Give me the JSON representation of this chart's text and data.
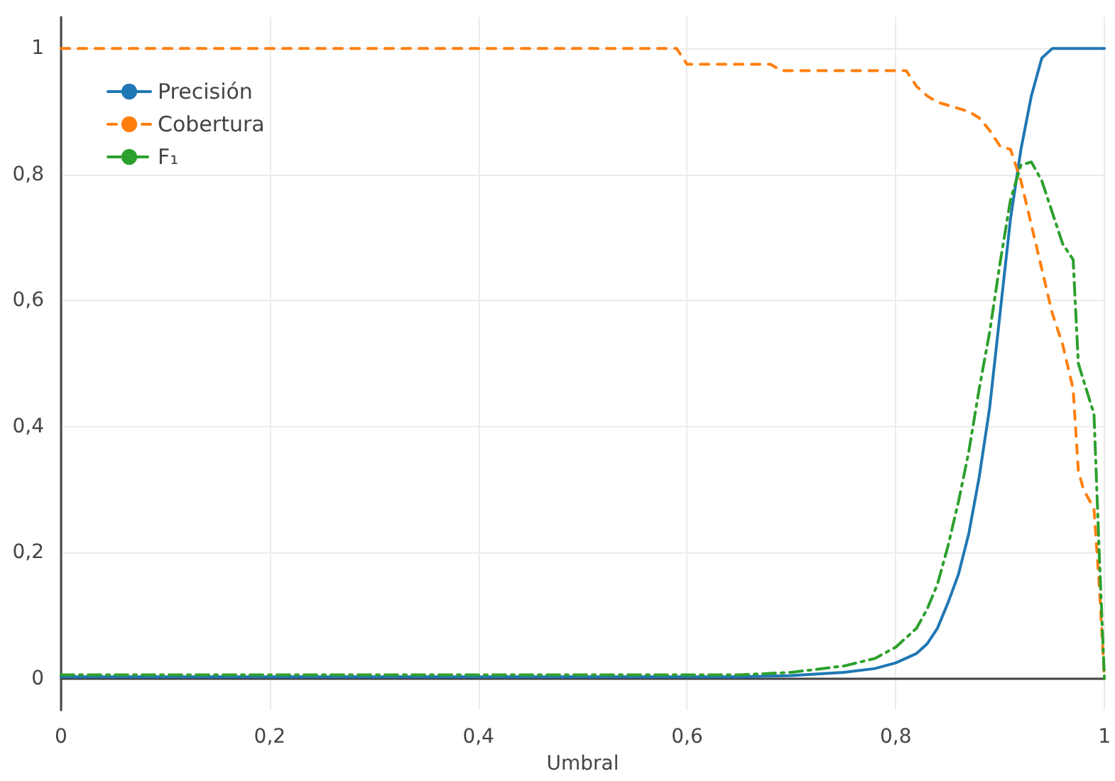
{
  "chart_data": {
    "type": "line",
    "xlabel": "Umbral",
    "xlim": [
      0,
      1
    ],
    "xticks": [
      {
        "value": 0,
        "label": "0"
      },
      {
        "value": 0.2,
        "label": "0,2"
      },
      {
        "value": 0.4,
        "label": "0,4"
      },
      {
        "value": 0.6,
        "label": "0,6"
      },
      {
        "value": 0.8,
        "label": "0,8"
      },
      {
        "value": 1,
        "label": "1"
      }
    ],
    "ylim": [
      -0.05,
      1.05
    ],
    "yticks": [
      {
        "value": 0,
        "label": "0"
      },
      {
        "value": 0.2,
        "label": "0,2"
      },
      {
        "value": 0.4,
        "label": "0,4"
      },
      {
        "value": 0.6,
        "label": "0,6"
      },
      {
        "value": 0.8,
        "label": "0,8"
      },
      {
        "value": 1,
        "label": "1"
      }
    ],
    "grid": true,
    "legend": "top left",
    "marker": "none",
    "series": [
      {
        "name": "Precisión",
        "color": "#1f77b4",
        "line_style": "solid",
        "x": [
          0,
          0.3,
          0.6,
          0.65,
          0.7,
          0.75,
          0.78,
          0.8,
          0.82,
          0.83,
          0.84,
          0.85,
          0.86,
          0.87,
          0.88,
          0.89,
          0.9,
          0.91,
          0.92,
          0.93,
          0.94,
          0.95,
          1.0
        ],
        "values": [
          0.003,
          0.003,
          0.003,
          0.003,
          0.005,
          0.01,
          0.016,
          0.025,
          0.04,
          0.055,
          0.08,
          0.12,
          0.165,
          0.23,
          0.32,
          0.43,
          0.58,
          0.73,
          0.84,
          0.925,
          0.985,
          1,
          1
        ]
      },
      {
        "name": "Cobertura",
        "color": "#ff7f0e",
        "line_style": "dashed",
        "x": [
          0,
          0.59,
          0.6,
          0.68,
          0.69,
          0.81,
          0.82,
          0.83,
          0.84,
          0.85,
          0.86,
          0.87,
          0.88,
          0.89,
          0.9,
          0.91,
          0.92,
          0.93,
          0.94,
          0.95,
          0.96,
          0.97,
          0.975,
          0.98,
          0.99,
          0.995,
          1.0
        ],
        "values": [
          1,
          1,
          0.975,
          0.975,
          0.965,
          0.965,
          0.94,
          0.925,
          0.915,
          0.91,
          0.905,
          0.9,
          0.89,
          0.87,
          0.845,
          0.84,
          0.79,
          0.72,
          0.65,
          0.58,
          0.53,
          0.46,
          0.33,
          0.3,
          0.27,
          0.15,
          0
        ]
      },
      {
        "name": "F₁",
        "color": "#2ca02c",
        "line_style": "dashdot",
        "x": [
          0,
          0.3,
          0.6,
          0.65,
          0.7,
          0.75,
          0.78,
          0.8,
          0.82,
          0.83,
          0.84,
          0.85,
          0.86,
          0.87,
          0.88,
          0.89,
          0.9,
          0.91,
          0.92,
          0.93,
          0.94,
          0.95,
          0.96,
          0.97,
          0.975,
          0.99,
          0.995,
          1.0
        ],
        "values": [
          0.006,
          0.006,
          0.006,
          0.006,
          0.01,
          0.02,
          0.032,
          0.05,
          0.08,
          0.11,
          0.15,
          0.21,
          0.28,
          0.36,
          0.46,
          0.55,
          0.66,
          0.76,
          0.815,
          0.82,
          0.79,
          0.74,
          0.69,
          0.665,
          0.5,
          0.42,
          0.2,
          0
        ]
      }
    ]
  }
}
